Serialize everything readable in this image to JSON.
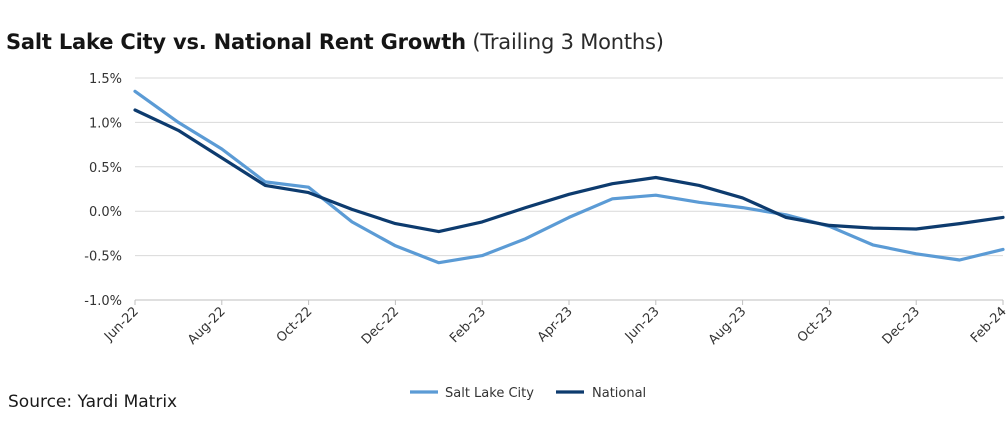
{
  "title": "Salt Lake City vs. National Rent Growth",
  "subtitle": "(Trailing 3 Months)",
  "source": "Source: Yardi Matrix",
  "colors": {
    "salt_lake_city": "#5b9bd5",
    "national": "#0d3b6e",
    "grid": "#d9d9d9",
    "axis": "#bfbfbf",
    "text": "#333333"
  },
  "chart_data": {
    "type": "line",
    "ylim": [
      -1.0,
      1.5
    ],
    "y_ticks": [
      1.5,
      1.0,
      0.5,
      0.0,
      -0.5,
      -1.0
    ],
    "y_tick_labels": [
      "1.5%",
      "1.0%",
      "0.5%",
      "0.0%",
      "-0.5%",
      "-1.0%"
    ],
    "x_tick_labels": [
      "Jun-22",
      "Aug-22",
      "Oct-22",
      "Dec-22",
      "Feb-23",
      "Apr-23",
      "Jun-23",
      "Aug-23",
      "Oct-23",
      "Dec-23",
      "Feb-24"
    ],
    "x": [
      "Jun-22",
      "Jul-22",
      "Aug-22",
      "Sep-22",
      "Oct-22",
      "Nov-22",
      "Dec-22",
      "Jan-23",
      "Feb-23",
      "Mar-23",
      "Apr-23",
      "May-23",
      "Jun-23",
      "Jul-23",
      "Aug-23",
      "Sep-23",
      "Oct-23",
      "Nov-23",
      "Dec-23",
      "Jan-24",
      "Feb-24"
    ],
    "grid": true,
    "legend_position": "bottom",
    "series": [
      {
        "name": "Salt Lake City",
        "values": [
          1.35,
          1.0,
          0.7,
          0.33,
          0.27,
          -0.12,
          -0.39,
          -0.58,
          -0.5,
          -0.31,
          -0.07,
          0.14,
          0.18,
          0.1,
          0.04,
          -0.04,
          -0.17,
          -0.38,
          -0.48,
          -0.55,
          -0.43
        ]
      },
      {
        "name": "National",
        "values": [
          1.14,
          0.91,
          0.6,
          0.29,
          0.21,
          0.02,
          -0.14,
          -0.23,
          -0.12,
          0.04,
          0.19,
          0.31,
          0.38,
          0.29,
          0.15,
          -0.07,
          -0.16,
          -0.19,
          -0.2,
          -0.14,
          -0.07
        ]
      }
    ]
  }
}
